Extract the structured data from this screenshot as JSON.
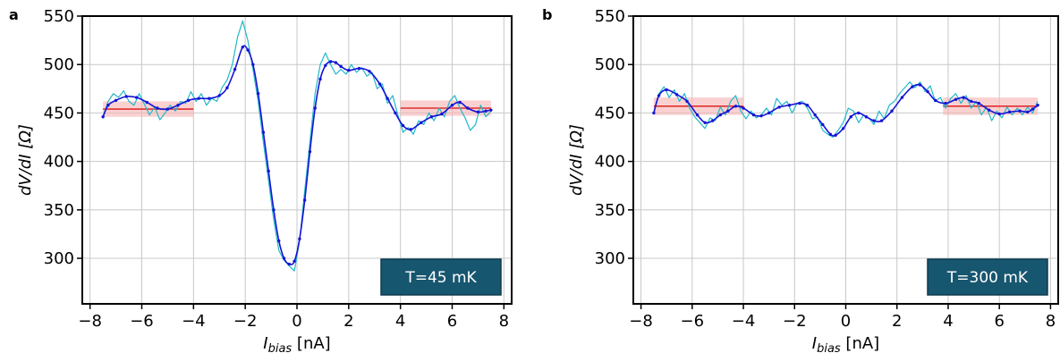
{
  "colors": {
    "raw": "#22b8c8",
    "smooth": "#1414d6",
    "band_line": "#e03030",
    "band_fill": "#f6b3b3",
    "badge_bg": "#17566f",
    "badge_text": "#ffffff",
    "grid": "#c8c8c8"
  },
  "chart_data": [
    {
      "panel_label": "a",
      "type": "line",
      "xlabel_main": "I",
      "xlabel_sub": "bias",
      "xlabel_unit": " [nA]",
      "ylabel_text": "dV/dI [Ω]",
      "xlim": [
        -8.3,
        8.3
      ],
      "ylim": [
        253,
        550
      ],
      "xticks": [
        "−8",
        "−6",
        "−4",
        "−2",
        "0",
        "2",
        "4",
        "6",
        "8"
      ],
      "yticks": [
        "300",
        "350",
        "400",
        "450",
        "500",
        "550"
      ],
      "grid": true,
      "annotation": "T=45 mK",
      "annotation_position": "bottom-right",
      "bands": [
        {
          "x_range": [
            -7.5,
            -4.0
          ],
          "y": 454,
          "y_low": 446,
          "y_high": 462
        },
        {
          "x_range": [
            4.0,
            7.5
          ],
          "y": 455,
          "y_low": 447,
          "y_high": 463
        }
      ],
      "smooth_points": [
        [
          -7.5,
          446
        ],
        [
          -7.3,
          458
        ],
        [
          -7.0,
          463
        ],
        [
          -6.6,
          467
        ],
        [
          -6.2,
          466
        ],
        [
          -5.8,
          461
        ],
        [
          -5.4,
          455
        ],
        [
          -5.0,
          454
        ],
        [
          -4.6,
          458
        ],
        [
          -4.2,
          463
        ],
        [
          -3.8,
          465
        ],
        [
          -3.4,
          465
        ],
        [
          -3.0,
          468
        ],
        [
          -2.7,
          476
        ],
        [
          -2.4,
          495
        ],
        [
          -2.1,
          518
        ],
        [
          -1.9,
          515
        ],
        [
          -1.7,
          500
        ],
        [
          -1.5,
          470
        ],
        [
          -1.3,
          430
        ],
        [
          -1.1,
          390
        ],
        [
          -0.9,
          350
        ],
        [
          -0.7,
          318
        ],
        [
          -0.5,
          300
        ],
        [
          -0.3,
          294
        ],
        [
          -0.1,
          297
        ],
        [
          0.1,
          320
        ],
        [
          0.3,
          360
        ],
        [
          0.5,
          410
        ],
        [
          0.7,
          455
        ],
        [
          0.9,
          485
        ],
        [
          1.1,
          499
        ],
        [
          1.3,
          503
        ],
        [
          1.5,
          502
        ],
        [
          1.7,
          498
        ],
        [
          2.0,
          494
        ],
        [
          2.4,
          496
        ],
        [
          2.8,
          493
        ],
        [
          3.2,
          480
        ],
        [
          3.5,
          465
        ],
        [
          3.8,
          450
        ],
        [
          4.1,
          437
        ],
        [
          4.4,
          433
        ],
        [
          4.8,
          440
        ],
        [
          5.2,
          446
        ],
        [
          5.6,
          449
        ],
        [
          6.0,
          458
        ],
        [
          6.3,
          461
        ],
        [
          6.6,
          455
        ],
        [
          7.0,
          451
        ],
        [
          7.3,
          452
        ],
        [
          7.5,
          453
        ]
      ],
      "raw_points": [
        [
          -7.5,
          446
        ],
        [
          -7.3,
          462
        ],
        [
          -7.1,
          470
        ],
        [
          -6.9,
          466
        ],
        [
          -6.7,
          473
        ],
        [
          -6.5,
          462
        ],
        [
          -6.3,
          458
        ],
        [
          -6.1,
          470
        ],
        [
          -5.9,
          459
        ],
        [
          -5.7,
          448
        ],
        [
          -5.5,
          456
        ],
        [
          -5.3,
          443
        ],
        [
          -5.1,
          450
        ],
        [
          -4.9,
          458
        ],
        [
          -4.7,
          452
        ],
        [
          -4.5,
          462
        ],
        [
          -4.3,
          460
        ],
        [
          -4.1,
          472
        ],
        [
          -3.9,
          462
        ],
        [
          -3.7,
          470
        ],
        [
          -3.5,
          458
        ],
        [
          -3.3,
          465
        ],
        [
          -3.1,
          462
        ],
        [
          -2.9,
          476
        ],
        [
          -2.7,
          484
        ],
        [
          -2.5,
          500
        ],
        [
          -2.3,
          528
        ],
        [
          -2.1,
          545
        ],
        [
          -1.9,
          525
        ],
        [
          -1.7,
          495
        ],
        [
          -1.5,
          462
        ],
        [
          -1.3,
          420
        ],
        [
          -1.1,
          380
        ],
        [
          -0.9,
          340
        ],
        [
          -0.7,
          308
        ],
        [
          -0.5,
          298
        ],
        [
          -0.3,
          292
        ],
        [
          -0.1,
          287
        ],
        [
          0.1,
          318
        ],
        [
          0.3,
          370
        ],
        [
          0.5,
          420
        ],
        [
          0.7,
          470
        ],
        [
          0.9,
          500
        ],
        [
          1.1,
          512
        ],
        [
          1.3,
          500
        ],
        [
          1.5,
          490
        ],
        [
          1.7,
          495
        ],
        [
          1.9,
          490
        ],
        [
          2.1,
          500
        ],
        [
          2.3,
          492
        ],
        [
          2.5,
          497
        ],
        [
          2.7,
          488
        ],
        [
          2.9,
          492
        ],
        [
          3.1,
          475
        ],
        [
          3.3,
          480
        ],
        [
          3.5,
          460
        ],
        [
          3.7,
          468
        ],
        [
          3.9,
          448
        ],
        [
          4.1,
          430
        ],
        [
          4.3,
          435
        ],
        [
          4.5,
          428
        ],
        [
          4.7,
          442
        ],
        [
          4.9,
          438
        ],
        [
          5.1,
          450
        ],
        [
          5.3,
          442
        ],
        [
          5.5,
          455
        ],
        [
          5.7,
          446
        ],
        [
          5.9,
          462
        ],
        [
          6.1,
          468
        ],
        [
          6.3,
          455
        ],
        [
          6.5,
          445
        ],
        [
          6.7,
          432
        ],
        [
          6.9,
          438
        ],
        [
          7.1,
          458
        ],
        [
          7.3,
          446
        ],
        [
          7.5,
          452
        ]
      ]
    },
    {
      "panel_label": "b",
      "type": "line",
      "xlabel_main": "I",
      "xlabel_sub": "bias",
      "xlabel_unit": " [nA]",
      "ylabel_text": "dV/dI [Ω]",
      "xlim": [
        -8.3,
        8.3
      ],
      "ylim": [
        253,
        550
      ],
      "xticks": [
        "−8",
        "−6",
        "−4",
        "−2",
        "0",
        "2",
        "4",
        "6",
        "8"
      ],
      "yticks": [
        "300",
        "350",
        "400",
        "450",
        "500",
        "550"
      ],
      "grid": true,
      "annotation": "T=300 mK",
      "annotation_position": "bottom-right",
      "bands": [
        {
          "x_range": [
            -7.5,
            -4.0
          ],
          "y": 457,
          "y_low": 448,
          "y_high": 466
        },
        {
          "x_range": [
            3.8,
            7.5
          ],
          "y": 457,
          "y_low": 448,
          "y_high": 466
        }
      ],
      "smooth_points": [
        [
          -7.5,
          450
        ],
        [
          -7.3,
          468
        ],
        [
          -7.0,
          474
        ],
        [
          -6.6,
          469
        ],
        [
          -6.2,
          462
        ],
        [
          -5.8,
          448
        ],
        [
          -5.5,
          440
        ],
        [
          -5.2,
          442
        ],
        [
          -4.9,
          448
        ],
        [
          -4.6,
          452
        ],
        [
          -4.3,
          457
        ],
        [
          -4.0,
          455
        ],
        [
          -3.6,
          448
        ],
        [
          -3.3,
          447
        ],
        [
          -3.0,
          450
        ],
        [
          -2.6,
          456
        ],
        [
          -2.2,
          458
        ],
        [
          -1.8,
          460
        ],
        [
          -1.5,
          458
        ],
        [
          -1.2,
          448
        ],
        [
          -0.9,
          438
        ],
        [
          -0.6,
          428
        ],
        [
          -0.4,
          427
        ],
        [
          -0.1,
          434
        ],
        [
          0.2,
          446
        ],
        [
          0.5,
          450
        ],
        [
          0.8,
          446
        ],
        [
          1.1,
          442
        ],
        [
          1.4,
          442
        ],
        [
          1.8,
          452
        ],
        [
          2.2,
          466
        ],
        [
          2.6,
          477
        ],
        [
          2.9,
          479
        ],
        [
          3.2,
          472
        ],
        [
          3.5,
          463
        ],
        [
          3.9,
          460
        ],
        [
          4.3,
          464
        ],
        [
          4.6,
          466
        ],
        [
          4.9,
          462
        ],
        [
          5.2,
          460
        ],
        [
          5.6,
          453
        ],
        [
          6.0,
          449
        ],
        [
          6.4,
          451
        ],
        [
          6.8,
          452
        ],
        [
          7.1,
          451
        ],
        [
          7.3,
          454
        ],
        [
          7.5,
          458
        ]
      ],
      "raw_points": [
        [
          -7.5,
          450
        ],
        [
          -7.3,
          470
        ],
        [
          -7.1,
          477
        ],
        [
          -6.9,
          466
        ],
        [
          -6.7,
          474
        ],
        [
          -6.5,
          462
        ],
        [
          -6.3,
          470
        ],
        [
          -6.1,
          455
        ],
        [
          -5.9,
          446
        ],
        [
          -5.7,
          440
        ],
        [
          -5.5,
          434
        ],
        [
          -5.3,
          445
        ],
        [
          -5.1,
          442
        ],
        [
          -4.9,
          456
        ],
        [
          -4.7,
          448
        ],
        [
          -4.5,
          462
        ],
        [
          -4.3,
          468
        ],
        [
          -4.1,
          452
        ],
        [
          -3.9,
          444
        ],
        [
          -3.7,
          452
        ],
        [
          -3.5,
          445
        ],
        [
          -3.3,
          448
        ],
        [
          -3.1,
          455
        ],
        [
          -2.9,
          448
        ],
        [
          -2.7,
          465
        ],
        [
          -2.5,
          458
        ],
        [
          -2.3,
          462
        ],
        [
          -2.1,
          450
        ],
        [
          -1.9,
          460
        ],
        [
          -1.7,
          462
        ],
        [
          -1.5,
          455
        ],
        [
          -1.3,
          444
        ],
        [
          -1.1,
          446
        ],
        [
          -0.9,
          432
        ],
        [
          -0.7,
          428
        ],
        [
          -0.5,
          425
        ],
        [
          -0.3,
          432
        ],
        [
          -0.1,
          440
        ],
        [
          0.1,
          455
        ],
        [
          0.3,
          452
        ],
        [
          0.5,
          440
        ],
        [
          0.7,
          448
        ],
        [
          0.9,
          445
        ],
        [
          1.1,
          438
        ],
        [
          1.3,
          452
        ],
        [
          1.5,
          444
        ],
        [
          1.7,
          458
        ],
        [
          1.9,
          462
        ],
        [
          2.1,
          470
        ],
        [
          2.3,
          476
        ],
        [
          2.5,
          482
        ],
        [
          2.7,
          476
        ],
        [
          2.9,
          482
        ],
        [
          3.1,
          472
        ],
        [
          3.3,
          478
        ],
        [
          3.5,
          462
        ],
        [
          3.7,
          466
        ],
        [
          3.9,
          455
        ],
        [
          4.1,
          465
        ],
        [
          4.3,
          470
        ],
        [
          4.5,
          460
        ],
        [
          4.7,
          468
        ],
        [
          4.9,
          455
        ],
        [
          5.1,
          462
        ],
        [
          5.3,
          448
        ],
        [
          5.5,
          456
        ],
        [
          5.7,
          442
        ],
        [
          5.9,
          452
        ],
        [
          6.1,
          445
        ],
        [
          6.3,
          456
        ],
        [
          6.5,
          448
        ],
        [
          6.7,
          455
        ],
        [
          6.9,
          448
        ],
        [
          7.1,
          456
        ],
        [
          7.3,
          450
        ],
        [
          7.5,
          462
        ]
      ]
    }
  ]
}
